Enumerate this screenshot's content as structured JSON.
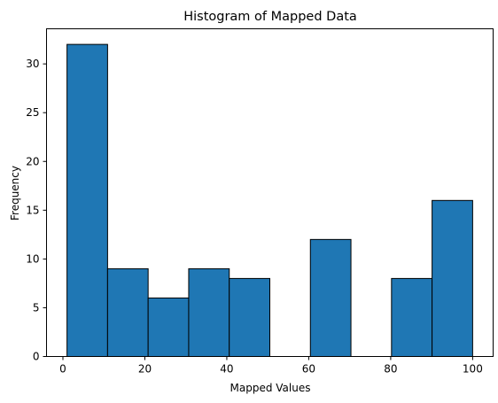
{
  "chart_data": {
    "type": "histogram",
    "title": "Histogram of Mapped Data",
    "xlabel": "Mapped Values",
    "ylabel": "Frequency",
    "bins": [
      {
        "start": 1.0,
        "end": 10.9,
        "count": 32
      },
      {
        "start": 10.9,
        "end": 20.8,
        "count": 9
      },
      {
        "start": 20.8,
        "end": 30.7,
        "count": 6
      },
      {
        "start": 30.7,
        "end": 40.6,
        "count": 9
      },
      {
        "start": 40.6,
        "end": 50.5,
        "count": 8
      },
      {
        "start": 50.5,
        "end": 60.4,
        "count": 0
      },
      {
        "start": 60.4,
        "end": 70.3,
        "count": 12
      },
      {
        "start": 70.3,
        "end": 80.2,
        "count": 0
      },
      {
        "start": 80.2,
        "end": 90.1,
        "count": 8
      },
      {
        "start": 90.1,
        "end": 100.0,
        "count": 16
      }
    ],
    "xlim": [
      -4,
      105
    ],
    "ylim": [
      0,
      33.6
    ],
    "xticks": [
      0,
      20,
      40,
      60,
      80,
      100
    ],
    "yticks": [
      0,
      5,
      10,
      15,
      20,
      25,
      30
    ],
    "grid": false,
    "bar_color": "#1f77b4",
    "edge_color": "#000000"
  }
}
